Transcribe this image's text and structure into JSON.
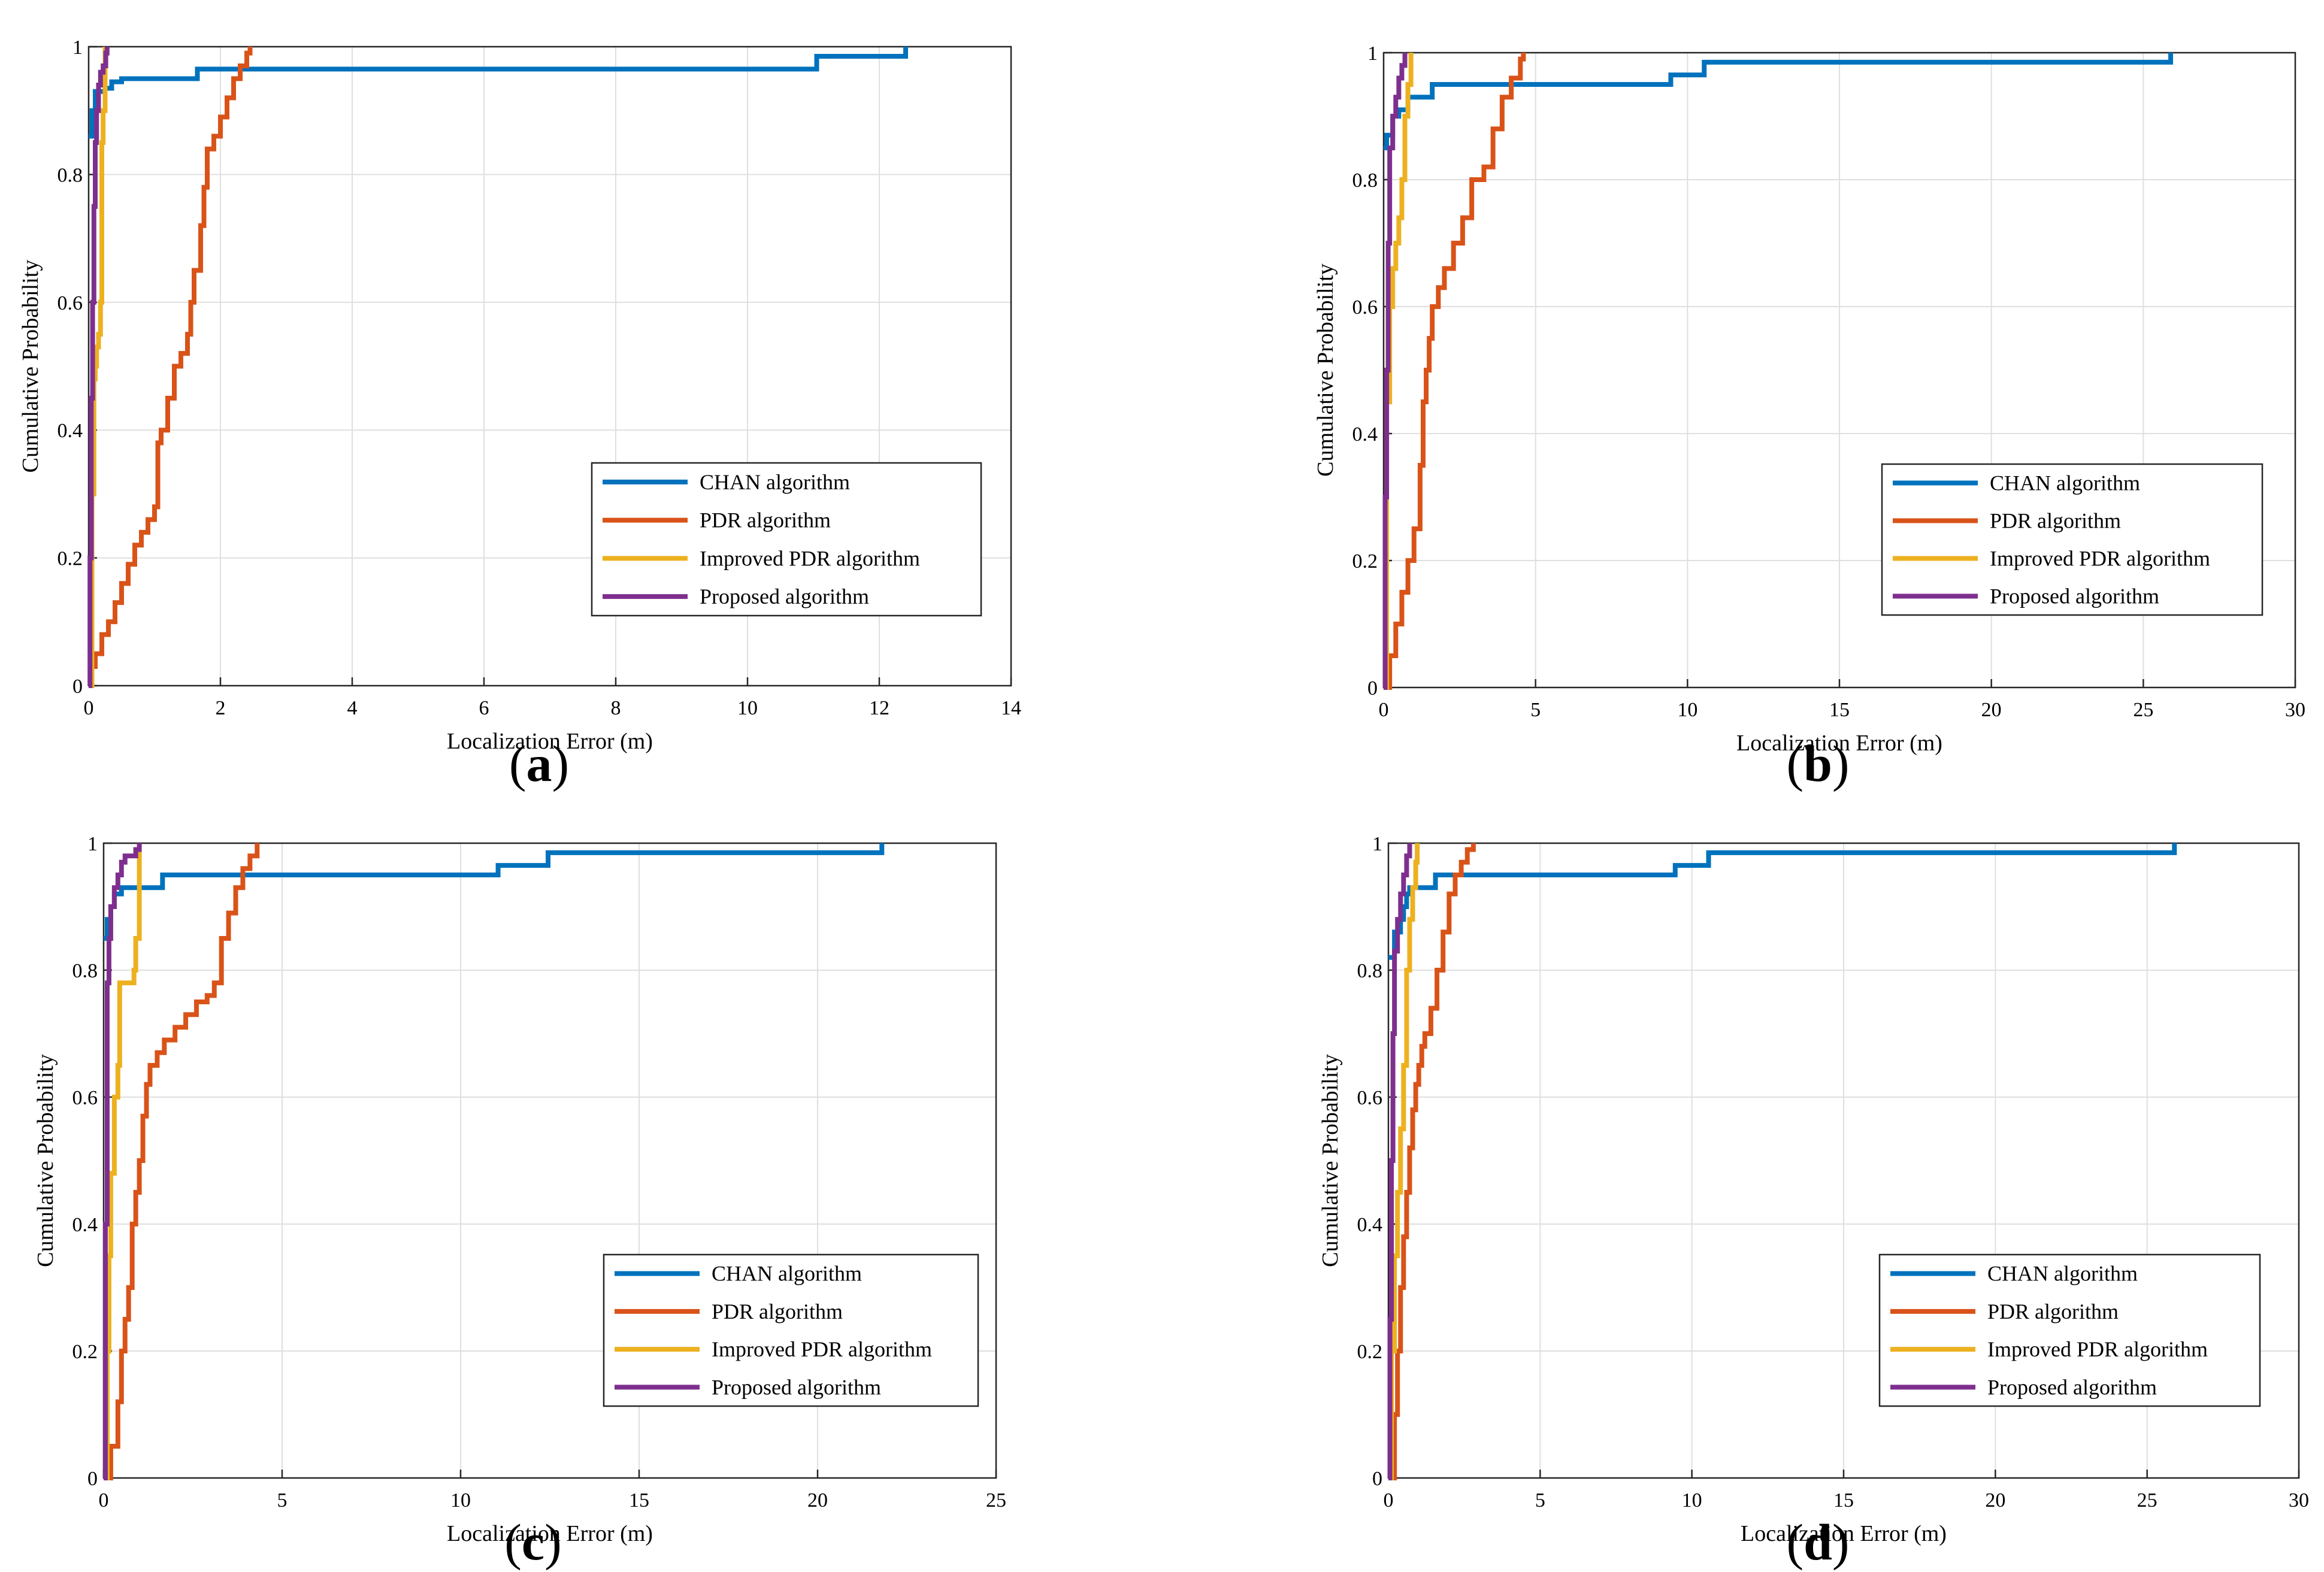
{
  "colors": {
    "chan": "#0072BD",
    "pdr": "#D95319",
    "improved": "#EDB120",
    "proposed": "#7E2F8E",
    "grid": "#dfdfdf",
    "axis": "#262626"
  },
  "chart_data": [
    {
      "type": "line",
      "caption": "a",
      "xlabel": "Localization Error (m)",
      "ylabel": "Cumulative Probability",
      "xlim": [
        0,
        14
      ],
      "ylim": [
        0,
        1
      ],
      "xticks": [
        0,
        2,
        4,
        6,
        8,
        10,
        12,
        14
      ],
      "yticks": [
        0,
        0.2,
        0.4,
        0.6,
        0.8,
        1
      ],
      "grid": true,
      "legend_position": "bottom-right",
      "series": [
        {
          "name": "CHAN algorithm",
          "color_key": "chan",
          "x": [
            0,
            0.05,
            0.1,
            0.2,
            0.25,
            0.35,
            0.5,
            1.6,
            1.65,
            2.2,
            11.0,
            11.05,
            12.4,
            12.4
          ],
          "y": [
            0.86,
            0.9,
            0.93,
            0.93,
            0.935,
            0.945,
            0.95,
            0.95,
            0.965,
            0.965,
            0.965,
            0.985,
            0.985,
            1.0
          ]
        },
        {
          "name": "PDR algorithm",
          "color_key": "pdr",
          "x": [
            0,
            0.05,
            0.1,
            0.2,
            0.3,
            0.4,
            0.5,
            0.6,
            0.7,
            0.8,
            0.9,
            1.0,
            1.05,
            1.1,
            1.2,
            1.3,
            1.4,
            1.5,
            1.55,
            1.6,
            1.7,
            1.75,
            1.8,
            1.9,
            2.0,
            2.1,
            2.2,
            2.3,
            2.4,
            2.45
          ],
          "y": [
            0,
            0.03,
            0.05,
            0.08,
            0.1,
            0.13,
            0.16,
            0.19,
            0.22,
            0.24,
            0.26,
            0.28,
            0.38,
            0.4,
            0.45,
            0.5,
            0.52,
            0.55,
            0.6,
            0.65,
            0.72,
            0.78,
            0.84,
            0.86,
            0.89,
            0.92,
            0.95,
            0.97,
            0.99,
            1.0
          ]
        },
        {
          "name": "Improved PDR algorithm",
          "color_key": "improved",
          "x": [
            0,
            0.05,
            0.08,
            0.1,
            0.12,
            0.15,
            0.18,
            0.2,
            0.22,
            0.25,
            0.25
          ],
          "y": [
            0,
            0.3,
            0.48,
            0.5,
            0.53,
            0.55,
            0.6,
            0.85,
            0.9,
            0.92,
            1.0
          ]
        },
        {
          "name": "Proposed algorithm",
          "color_key": "proposed",
          "x": [
            0,
            0.02,
            0.04,
            0.06,
            0.08,
            0.1,
            0.12,
            0.15,
            0.18,
            0.22,
            0.26,
            0.28
          ],
          "y": [
            0,
            0.2,
            0.45,
            0.6,
            0.75,
            0.85,
            0.9,
            0.94,
            0.96,
            0.97,
            0.99,
            1.0
          ]
        }
      ]
    },
    {
      "type": "line",
      "caption": "b",
      "xlabel": "Localization Error (m)",
      "ylabel": "Cumulative Probability",
      "xlim": [
        0,
        30
      ],
      "ylim": [
        0,
        1
      ],
      "xticks": [
        0,
        5,
        10,
        15,
        20,
        25,
        30
      ],
      "yticks": [
        0,
        0.2,
        0.4,
        0.6,
        0.8,
        1
      ],
      "grid": true,
      "legend_position": "bottom-right",
      "series": [
        {
          "name": "CHAN algorithm",
          "color_key": "chan",
          "x": [
            0,
            0.1,
            0.3,
            0.5,
            0.8,
            1.5,
            1.6,
            9.4,
            9.45,
            10.5,
            10.55,
            25.9,
            25.9
          ],
          "y": [
            0.85,
            0.87,
            0.9,
            0.91,
            0.93,
            0.93,
            0.95,
            0.95,
            0.965,
            0.965,
            0.985,
            0.985,
            1.0
          ]
        },
        {
          "name": "PDR algorithm",
          "color_key": "pdr",
          "x": [
            0,
            0.2,
            0.4,
            0.6,
            0.8,
            1.0,
            1.2,
            1.3,
            1.4,
            1.5,
            1.6,
            1.8,
            2.0,
            2.3,
            2.6,
            2.9,
            3.3,
            3.6,
            3.9,
            4.2,
            4.5,
            4.6
          ],
          "y": [
            0,
            0.05,
            0.1,
            0.15,
            0.2,
            0.25,
            0.35,
            0.45,
            0.5,
            0.55,
            0.6,
            0.63,
            0.66,
            0.7,
            0.74,
            0.8,
            0.82,
            0.88,
            0.93,
            0.96,
            0.99,
            1.0
          ]
        },
        {
          "name": "Improved PDR algorithm",
          "color_key": "improved",
          "x": [
            0,
            0.1,
            0.2,
            0.3,
            0.4,
            0.5,
            0.6,
            0.7,
            0.8,
            0.9,
            0.9
          ],
          "y": [
            0,
            0.45,
            0.6,
            0.66,
            0.7,
            0.74,
            0.8,
            0.9,
            0.95,
            0.97,
            1.0
          ]
        },
        {
          "name": "Proposed algorithm",
          "color_key": "proposed",
          "x": [
            0,
            0.05,
            0.1,
            0.15,
            0.2,
            0.3,
            0.4,
            0.5,
            0.6,
            0.7
          ],
          "y": [
            0,
            0.3,
            0.5,
            0.7,
            0.85,
            0.9,
            0.93,
            0.96,
            0.98,
            1.0
          ]
        }
      ]
    },
    {
      "type": "line",
      "caption": "c",
      "xlabel": "Localization Error (m)",
      "ylabel": "Cumulative Probability",
      "xlim": [
        0,
        25
      ],
      "ylim": [
        0,
        1
      ],
      "xticks": [
        0,
        5,
        10,
        15,
        20,
        25
      ],
      "yticks": [
        0,
        0.2,
        0.4,
        0.6,
        0.8,
        1
      ],
      "grid": true,
      "legend_position": "bottom-right",
      "series": [
        {
          "name": "CHAN algorithm",
          "color_key": "chan",
          "x": [
            0,
            0.1,
            0.2,
            0.3,
            0.5,
            1.6,
            1.65,
            11.0,
            11.05,
            12.4,
            12.45,
            21.8,
            21.8
          ],
          "y": [
            0.85,
            0.88,
            0.9,
            0.92,
            0.93,
            0.93,
            0.95,
            0.95,
            0.965,
            0.965,
            0.985,
            0.985,
            1.0
          ]
        },
        {
          "name": "PDR algorithm",
          "color_key": "pdr",
          "x": [
            0,
            0.2,
            0.4,
            0.5,
            0.6,
            0.7,
            0.8,
            0.9,
            1.0,
            1.1,
            1.2,
            1.3,
            1.5,
            1.7,
            2.0,
            2.3,
            2.6,
            2.9,
            3.1,
            3.3,
            3.5,
            3.7,
            3.9,
            4.1,
            4.3
          ],
          "y": [
            0,
            0.05,
            0.12,
            0.2,
            0.25,
            0.3,
            0.4,
            0.45,
            0.5,
            0.57,
            0.62,
            0.65,
            0.67,
            0.69,
            0.71,
            0.73,
            0.75,
            0.76,
            0.78,
            0.85,
            0.89,
            0.93,
            0.96,
            0.98,
            1.0
          ]
        },
        {
          "name": "Improved PDR algorithm",
          "color_key": "improved",
          "x": [
            0,
            0.1,
            0.15,
            0.2,
            0.3,
            0.4,
            0.45,
            0.5,
            0.8,
            0.85,
            0.9,
            1.0,
            1.0
          ],
          "y": [
            0,
            0.2,
            0.35,
            0.48,
            0.6,
            0.65,
            0.78,
            0.78,
            0.78,
            0.8,
            0.85,
            0.95,
            1.0
          ]
        },
        {
          "name": "Proposed algorithm",
          "color_key": "proposed",
          "x": [
            0,
            0.05,
            0.1,
            0.15,
            0.2,
            0.3,
            0.4,
            0.5,
            0.6,
            0.8,
            0.9,
            1.0
          ],
          "y": [
            0,
            0.4,
            0.78,
            0.85,
            0.9,
            0.93,
            0.95,
            0.97,
            0.98,
            0.98,
            0.99,
            1.0
          ]
        }
      ]
    },
    {
      "type": "line",
      "caption": "d",
      "xlabel": "Localization Error (m)",
      "ylabel": "Cumulative Probability",
      "xlim": [
        0,
        30
      ],
      "ylim": [
        0,
        1
      ],
      "xticks": [
        0,
        5,
        10,
        15,
        20,
        25,
        30
      ],
      "yticks": [
        0,
        0.2,
        0.4,
        0.6,
        0.8,
        1
      ],
      "grid": true,
      "legend_position": "bottom-right",
      "series": [
        {
          "name": "CHAN algorithm",
          "color_key": "chan",
          "x": [
            0,
            0.2,
            0.4,
            0.5,
            0.6,
            0.7,
            1.0,
            1.5,
            1.55,
            9.4,
            9.45,
            10.5,
            10.55,
            25.9,
            25.9
          ],
          "y": [
            0.82,
            0.86,
            0.88,
            0.9,
            0.92,
            0.93,
            0.93,
            0.93,
            0.95,
            0.95,
            0.965,
            0.965,
            0.985,
            0.985,
            1.0
          ]
        },
        {
          "name": "PDR algorithm",
          "color_key": "pdr",
          "x": [
            0,
            0.2,
            0.3,
            0.4,
            0.5,
            0.6,
            0.7,
            0.8,
            0.9,
            1.0,
            1.1,
            1.2,
            1.4,
            1.6,
            1.8,
            2.0,
            2.2,
            2.4,
            2.6,
            2.8
          ],
          "y": [
            0,
            0.1,
            0.2,
            0.3,
            0.38,
            0.45,
            0.52,
            0.58,
            0.62,
            0.65,
            0.68,
            0.7,
            0.74,
            0.8,
            0.86,
            0.92,
            0.95,
            0.97,
            0.99,
            1.0
          ]
        },
        {
          "name": "Improved PDR algorithm",
          "color_key": "improved",
          "x": [
            0,
            0.1,
            0.2,
            0.3,
            0.4,
            0.5,
            0.6,
            0.7,
            0.8,
            0.9,
            0.95
          ],
          "y": [
            0,
            0.2,
            0.35,
            0.45,
            0.55,
            0.65,
            0.8,
            0.88,
            0.93,
            0.97,
            1.0
          ]
        },
        {
          "name": "Proposed algorithm",
          "color_key": "proposed",
          "x": [
            0,
            0.05,
            0.1,
            0.15,
            0.2,
            0.3,
            0.4,
            0.5,
            0.6,
            0.7
          ],
          "y": [
            0,
            0.25,
            0.5,
            0.7,
            0.83,
            0.88,
            0.92,
            0.95,
            0.98,
            1.0
          ]
        }
      ]
    }
  ]
}
